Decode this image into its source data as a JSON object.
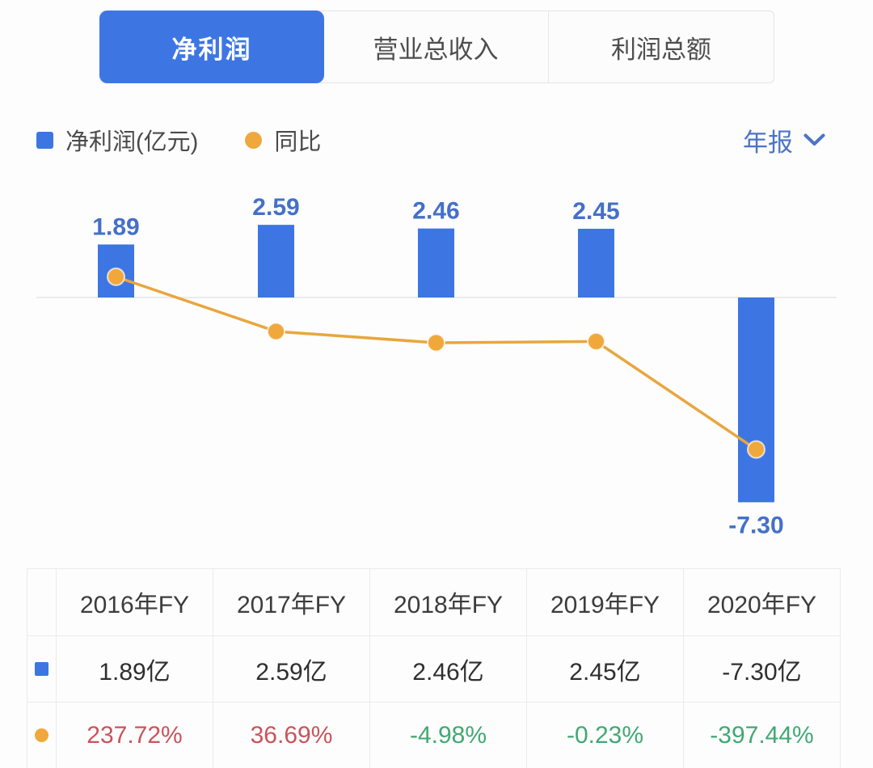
{
  "tab_bar": {
    "tabs": [
      {
        "label": "净利润",
        "active": true
      },
      {
        "label": "营业总收入",
        "active": false
      },
      {
        "label": "利润总额",
        "active": false
      }
    ]
  },
  "legend": {
    "items": [
      {
        "label": "净利润(亿元)",
        "marker": "square",
        "color": "#3D76E3"
      },
      {
        "label": "同比",
        "marker": "circle",
        "color": "#F0A83C"
      }
    ]
  },
  "period_selector": {
    "label": "年报",
    "icon": "chevron-down-icon"
  },
  "chart_data": {
    "type": "combo-bar-line",
    "categories": [
      "2016年FY",
      "2017年FY",
      "2018年FY",
      "2019年FY",
      "2020年FY"
    ],
    "series": [
      {
        "name": "净利润(亿元)",
        "type": "bar",
        "unit": "亿元",
        "values": [
          1.89,
          2.59,
          2.46,
          2.45,
          -7.3
        ],
        "data_labels": [
          "1.89",
          "2.59",
          "2.46",
          "2.45",
          "-7.30"
        ],
        "color": "#3D76E3"
      },
      {
        "name": "同比",
        "type": "line",
        "unit": "%",
        "values": [
          237.72,
          36.69,
          -4.98,
          -0.23,
          -397.44
        ],
        "color": "#F0A83C"
      }
    ],
    "baseline": 0,
    "grid": "zero-line-only",
    "legend_position": "top-left"
  },
  "table": {
    "headers": [
      "2016年FY",
      "2017年FY",
      "2018年FY",
      "2019年FY",
      "2020年FY"
    ],
    "rows": [
      {
        "series": "净利润",
        "marker": "bar-series-marker",
        "marker_color": "#3D76E3",
        "cells": [
          "1.89亿",
          "2.59亿",
          "2.46亿",
          "2.45亿",
          "-7.30亿"
        ]
      },
      {
        "series": "同比",
        "marker": "line-series-marker",
        "marker_color": "#F0A83C",
        "cells": [
          "237.72%",
          "36.69%",
          "-4.98%",
          "-0.23%",
          "-397.44%"
        ],
        "cell_colors": [
          "#C9545C",
          "#C9545C",
          "#41A873",
          "#41A873",
          "#41A873"
        ]
      }
    ]
  },
  "colors": {
    "accent_blue": "#3D76E3",
    "line_orange": "#F0A83C",
    "bar_label_blue": "#4470C8",
    "period_blue": "#4C74C6",
    "positive_pct_red": "#C9545C",
    "negative_pct_green": "#41A873",
    "zero_line_gray": "#ececec"
  }
}
